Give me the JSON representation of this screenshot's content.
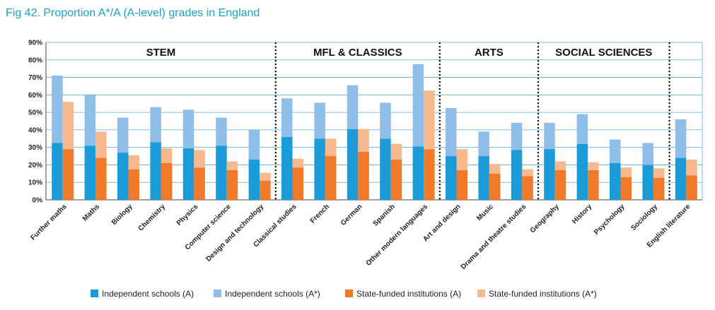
{
  "chart_data": {
    "type": "bar",
    "title": "Fig 42. Proportion A*/A (A-level) grades in England",
    "ylim": [
      0,
      90
    ],
    "yticks": [
      "0%",
      "10%",
      "20%",
      "30%",
      "40%",
      "50%",
      "60%",
      "70%",
      "80%",
      "90%"
    ],
    "grid": true,
    "legend_position": "bottom",
    "categories": [
      "Further maths",
      "Maths",
      "Biology",
      "Chemistry",
      "Physics",
      "Computer science",
      "Design and technology",
      "Classical studies",
      "French",
      "German",
      "Spanish",
      "Other modern languages",
      "Art and design",
      "Music",
      "Drama and theatre studies",
      "Geography",
      "History",
      "Psychology",
      "Sociology",
      "English literature"
    ],
    "groups": [
      {
        "label": "STEM",
        "start": 0,
        "end": 6
      },
      {
        "label": "MFL & CLASSICS",
        "start": 7,
        "end": 11
      },
      {
        "label": "ARTS",
        "start": 12,
        "end": 14
      },
      {
        "label": "SOCIAL SCIENCES",
        "start": 15,
        "end": 18
      },
      {
        "label": "",
        "start": 19,
        "end": 19
      }
    ],
    "series": [
      {
        "name": "Independent schools (A)",
        "color": "#1b9bd7",
        "values": [
          32.5,
          31,
          27,
          33,
          29.5,
          31,
          23,
          36,
          35,
          40.5,
          35,
          30.5,
          25,
          25,
          28.5,
          29,
          32,
          21,
          20,
          24
        ]
      },
      {
        "name": "Independent schools (A*)",
        "color": "#8fbfe8",
        "values": [
          38.5,
          29,
          20,
          20,
          22,
          16,
          17,
          22,
          20.5,
          25,
          20.5,
          47,
          27.5,
          14,
          15.5,
          15,
          17,
          13.5,
          12.5,
          22
        ]
      },
      {
        "name": "State-funded institutions (A)",
        "color": "#f07a2a",
        "values": [
          29,
          24,
          17.5,
          21,
          18.5,
          17,
          11,
          18.5,
          25,
          27.5,
          23,
          29,
          17,
          15,
          13.5,
          17,
          17,
          13,
          12.5,
          14
        ]
      },
      {
        "name": "State-funded institutions (A*)",
        "color": "#f8b98f",
        "values": [
          27,
          15,
          8,
          8.5,
          10,
          5,
          4.5,
          5,
          10,
          13,
          9,
          33.5,
          12,
          5.5,
          4,
          5,
          4.5,
          5.5,
          5.5,
          9
        ]
      }
    ]
  }
}
